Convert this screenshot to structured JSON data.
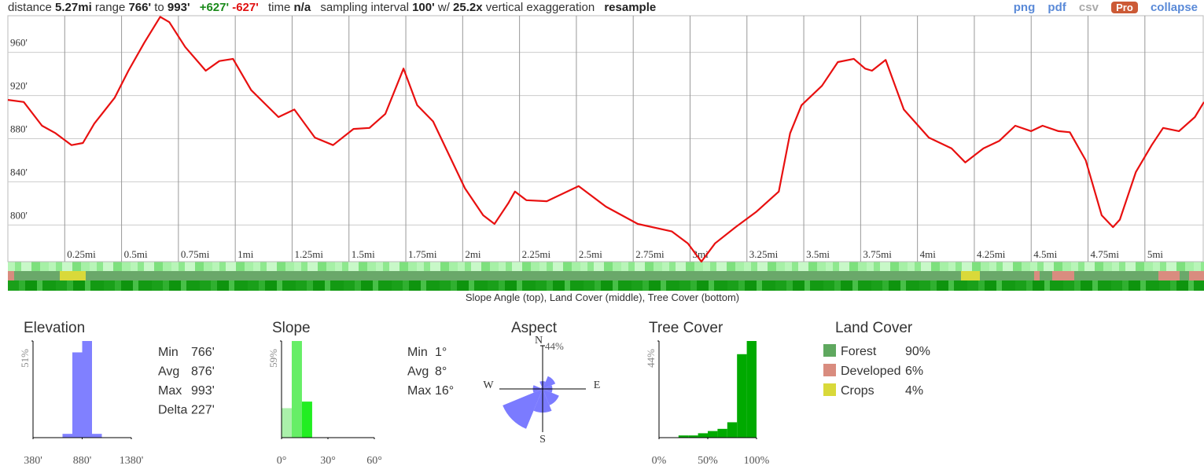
{
  "header": {
    "distance_label": "distance",
    "distance": "5.27mi",
    "range_label": "range",
    "range_min": "766'",
    "range_to": "to",
    "range_max": "993'",
    "gain": "+627'",
    "loss": "-627'",
    "time_label": "time",
    "time": "n/a",
    "interval_label": "sampling interval",
    "interval": "100'",
    "with": "w/",
    "exaggeration": "25.2x",
    "exaggeration_label": "vertical exaggeration",
    "resample": "resample"
  },
  "toolbar": {
    "png": "png",
    "pdf": "pdf",
    "csv": "csv",
    "pro": "Pro",
    "collapse": "collapse"
  },
  "strip_caption": "Slope Angle (top), Land Cover (middle), Tree Cover (bottom)",
  "stats": {
    "elevation": [
      [
        "Min",
        "766'"
      ],
      [
        "Avg",
        "876'"
      ],
      [
        "Max",
        "993'"
      ],
      [
        "Delta",
        "227'"
      ]
    ],
    "slope": [
      [
        "Min",
        "1°"
      ],
      [
        "Avg",
        "8°"
      ],
      [
        "Max",
        "16°"
      ]
    ]
  },
  "chart_data": [
    {
      "type": "line",
      "color": "#e81010",
      "grid": true,
      "x": [
        0,
        0.07,
        0.15,
        0.21,
        0.28,
        0.33,
        0.38,
        0.47,
        0.53,
        0.6,
        0.67,
        0.71,
        0.78,
        0.87,
        0.93,
        0.99,
        1.07,
        1.19,
        1.26,
        1.35,
        1.43,
        1.52,
        1.59,
        1.66,
        1.74,
        1.8,
        1.87,
        2.01,
        2.09,
        2.14,
        2.2,
        2.23,
        2.28,
        2.37,
        2.51,
        2.63,
        2.77,
        2.92,
        2.99,
        3.05,
        3.11,
        3.2,
        3.29,
        3.39,
        3.44,
        3.49,
        3.58,
        3.65,
        3.72,
        3.77,
        3.8,
        3.86,
        3.94,
        4.05,
        4.15,
        4.21,
        4.29,
        4.36,
        4.43,
        4.5,
        4.55,
        4.62,
        4.67,
        4.74,
        4.81,
        4.86,
        4.89,
        4.96,
        5.03,
        5.08,
        5.15,
        5.22,
        5.26
      ],
      "values": [
        916,
        914,
        892,
        885,
        874,
        876,
        894,
        918,
        943,
        969,
        993,
        988,
        965,
        943,
        952,
        954,
        925,
        900,
        907,
        881,
        874,
        889,
        890,
        903,
        945,
        911,
        896,
        834,
        809,
        801,
        820,
        831,
        823,
        822,
        836,
        817,
        801,
        794,
        783,
        766,
        783,
        798,
        812,
        831,
        885,
        911,
        929,
        951,
        954,
        945,
        943,
        953,
        907,
        881,
        871,
        858,
        871,
        878,
        892,
        887,
        892,
        887,
        886,
        860,
        809,
        798,
        805,
        849,
        874,
        890,
        887,
        900,
        914
      ],
      "xlim": [
        0,
        5.26
      ],
      "xticks": [
        {
          "value": 0.25,
          "label": "0.25mi"
        },
        {
          "value": 0.5,
          "label": "0.5mi"
        },
        {
          "value": 0.75,
          "label": "0.75mi"
        },
        {
          "value": 1,
          "label": "1mi"
        },
        {
          "value": 1.25,
          "label": "1.25mi"
        },
        {
          "value": 1.5,
          "label": "1.5mi"
        },
        {
          "value": 1.75,
          "label": "1.75mi"
        },
        {
          "value": 2,
          "label": "2mi"
        },
        {
          "value": 2.25,
          "label": "2.25mi"
        },
        {
          "value": 2.5,
          "label": "2.5mi"
        },
        {
          "value": 2.75,
          "label": "2.75mi"
        },
        {
          "value": 3,
          "label": "3mi"
        },
        {
          "value": 3.25,
          "label": "3.25mi"
        },
        {
          "value": 3.5,
          "label": "3.5mi"
        },
        {
          "value": 3.75,
          "label": "3.75mi"
        },
        {
          "value": 4,
          "label": "4mi"
        },
        {
          "value": 4.25,
          "label": "4.25mi"
        },
        {
          "value": 4.5,
          "label": "4.5mi"
        },
        {
          "value": 4.75,
          "label": "4.75mi"
        },
        {
          "value": 5,
          "label": "5mi"
        }
      ],
      "ylim": [
        766,
        994
      ],
      "yticks": [
        {
          "value": 800,
          "label": "800'"
        },
        {
          "value": 840,
          "label": "840'"
        },
        {
          "value": 880,
          "label": "880'"
        },
        {
          "value": 920,
          "label": "920'"
        },
        {
          "value": 960,
          "label": "960'"
        }
      ]
    },
    {
      "type": "histogram",
      "title": "Elevation",
      "color": "#8080ff",
      "bins": [
        680,
        780,
        880,
        980,
        1080
      ],
      "values": [
        2,
        45,
        51,
        2
      ],
      "xlim": [
        380,
        1380
      ],
      "xticks": [
        {
          "value": 380,
          "label": "380'"
        },
        {
          "value": 880,
          "label": "880'"
        },
        {
          "value": 1380,
          "label": "1380'"
        }
      ],
      "ylim": [
        0,
        51
      ],
      "yticks": [
        {
          "value": 51,
          "label": "51%"
        }
      ]
    },
    {
      "type": "histogram",
      "title": "Slope",
      "colors": [
        "#aaf0aa",
        "#66ee66",
        "#22ee22"
      ],
      "bins": [
        0,
        6.6,
        13.2,
        19.8
      ],
      "values": [
        18,
        59,
        22
      ],
      "xlim": [
        0,
        60
      ],
      "xticks": [
        {
          "value": 0,
          "label": "0°"
        },
        {
          "value": 30,
          "label": "30°"
        },
        {
          "value": 60,
          "label": "60°"
        }
      ],
      "ylim": [
        0,
        59
      ],
      "yticks": [
        {
          "value": 59,
          "label": "59%"
        }
      ]
    },
    {
      "type": "rose",
      "title": "Aspect",
      "color": "#7b7bff",
      "categories": [
        "N",
        null,
        "E",
        null,
        "S",
        null,
        "W",
        null
      ],
      "values": [
        8,
        14,
        10,
        18,
        24,
        44,
        10,
        2
      ],
      "rlim": [
        0,
        44
      ],
      "rticks": [
        {
          "value": 44,
          "label": "44%"
        }
      ]
    },
    {
      "type": "histogram",
      "title": "Tree Cover",
      "color": "#00aa00",
      "bins": [
        20,
        30,
        40,
        50,
        60,
        70,
        80,
        90,
        100
      ],
      "values": [
        1,
        1,
        2,
        3,
        4,
        7,
        38,
        44
      ],
      "xlim": [
        0,
        100
      ],
      "xticks": [
        {
          "value": 0,
          "label": "0%"
        },
        {
          "value": 50,
          "label": "50%"
        },
        {
          "value": 100,
          "label": "100%"
        }
      ],
      "ylim": [
        0,
        44
      ],
      "yticks": [
        {
          "value": 44,
          "label": "44%"
        }
      ]
    },
    {
      "type": "legend",
      "title": "Land Cover",
      "categories": [
        "Forest",
        "Developed",
        "Crops"
      ],
      "values": [
        90,
        6,
        4
      ],
      "value_labels": [
        "90%",
        "6%",
        "4%"
      ],
      "colors": [
        "#5fa85f",
        "#d98c7f",
        "#d9d93a"
      ]
    }
  ]
}
